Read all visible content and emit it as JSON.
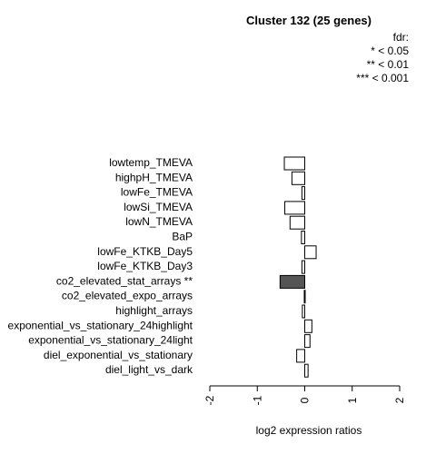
{
  "chart_data": {
    "type": "bar",
    "orientation": "horizontal",
    "title": "Cluster 132 (25 genes)",
    "xlabel": "log2 expression ratios",
    "xlim": [
      -2,
      2
    ],
    "xticks": [
      -2,
      -1,
      0,
      1,
      2
    ],
    "xtick_labels": [
      "-2",
      "-1",
      "0",
      "1",
      "2"
    ],
    "legend": {
      "title": "fdr:",
      "entries": [
        "* < 0.05",
        "** < 0.01",
        "*** < 0.001"
      ]
    },
    "categories": [
      "lowtemp_TMEVA",
      "highpH_TMEVA",
      "lowFe_TMEVA",
      "lowSi_TMEVA",
      "lowN_TMEVA",
      "BaP",
      "lowFe_KTKB_Day5",
      "lowFe_KTKB_Day3",
      "co2_elevated_stat_arrays **",
      "co2_elevated_expo_arrays",
      "highlight_arrays",
      "exponential_vs_stationary_24highlight",
      "exponential_vs_stationary_24light",
      "diel_exponential_vs_stationary",
      "diel_light_vs_dark"
    ],
    "values": [
      -0.43,
      -0.27,
      -0.06,
      -0.42,
      -0.31,
      -0.07,
      0.24,
      -0.06,
      -0.52,
      -0.01,
      -0.05,
      0.15,
      0.11,
      -0.17,
      0.07
    ],
    "highlighted": [
      false,
      false,
      false,
      false,
      false,
      false,
      false,
      false,
      true,
      false,
      false,
      false,
      false,
      false,
      false
    ],
    "colors": {
      "normal": "#ffffff",
      "highlight": "#555555",
      "stroke": "#000000"
    }
  }
}
